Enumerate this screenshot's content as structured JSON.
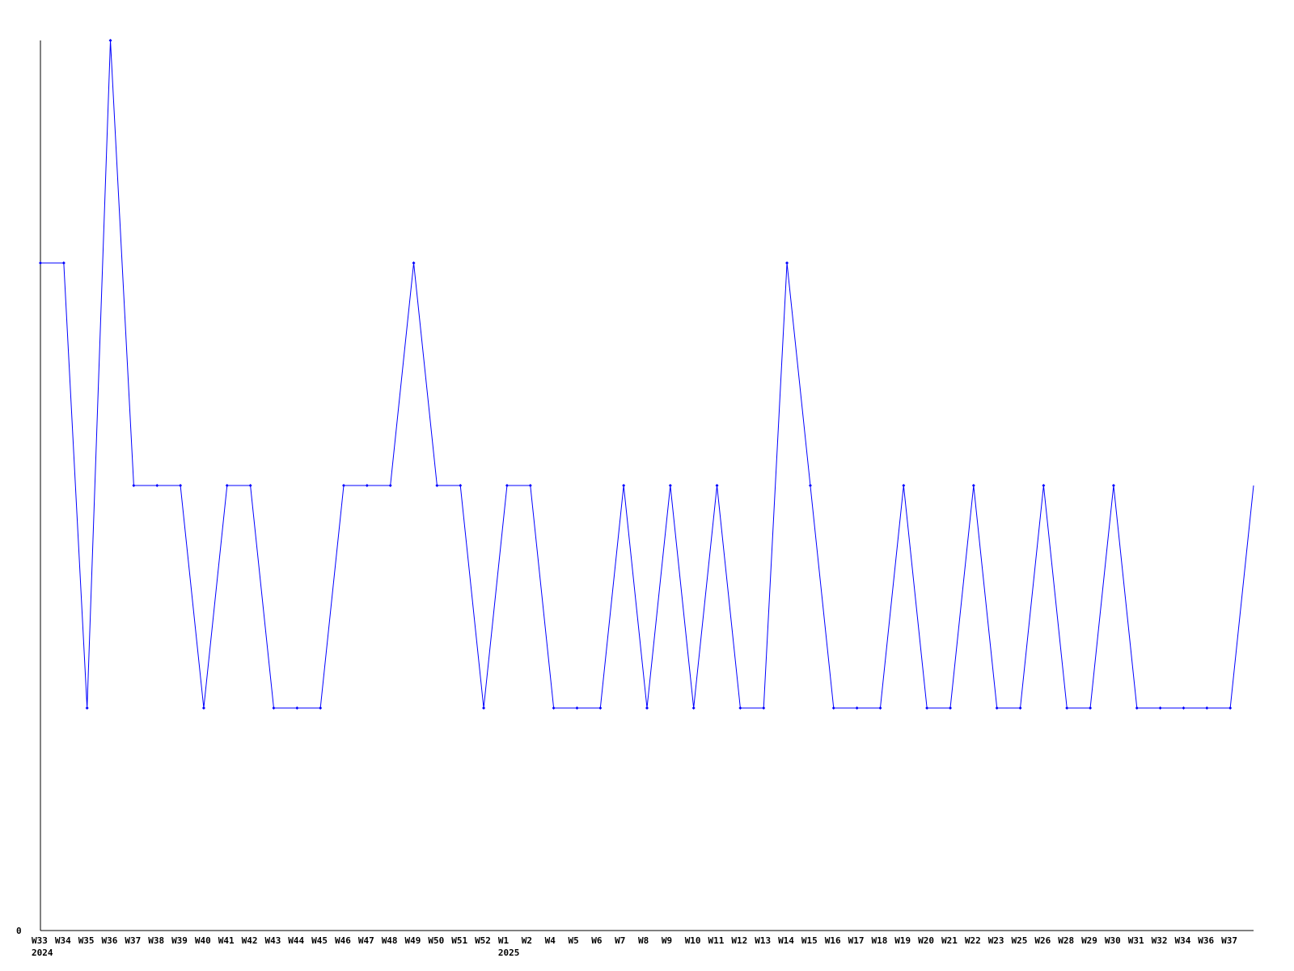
{
  "chart_data": {
    "type": "line",
    "title": "",
    "xlabel": "",
    "ylabel": "",
    "ylim": [
      0,
      4
    ],
    "y_tick_labels": [
      "0"
    ],
    "grid": false,
    "line_color": "#0000ff",
    "categories": [
      "W33",
      "W34",
      "W35",
      "W36",
      "W37",
      "W38",
      "W39",
      "W40",
      "W41",
      "W42",
      "W43",
      "W44",
      "W45",
      "W46",
      "W47",
      "W48",
      "W49",
      "W50",
      "W51",
      "W52",
      "W1",
      "W2",
      "W4",
      "W5",
      "W6",
      "W7",
      "W8",
      "W9",
      "W10",
      "W11",
      "W12",
      "W13",
      "W14",
      "W15",
      "W16",
      "W17",
      "W18",
      "W19",
      "W20",
      "W21",
      "W22",
      "W23",
      "W25",
      "W26",
      "W28",
      "W29",
      "W30",
      "W31",
      "W32",
      "W34",
      "W36",
      "W37",
      ""
    ],
    "year_labels": [
      {
        "label": "2024",
        "at": "W33"
      },
      {
        "label": "2025",
        "at": "W1"
      }
    ],
    "values": [
      3,
      3,
      1,
      4,
      2,
      2,
      2,
      1,
      2,
      2,
      1,
      1,
      1,
      2,
      2,
      2,
      3,
      2,
      2,
      1,
      2,
      2,
      1,
      1,
      1,
      2,
      1,
      2,
      1,
      2,
      1,
      1,
      3,
      2,
      1,
      1,
      1,
      2,
      1,
      1,
      2,
      1,
      1,
      2,
      1,
      1,
      2,
      1,
      1,
      1,
      1,
      1,
      2
    ]
  }
}
